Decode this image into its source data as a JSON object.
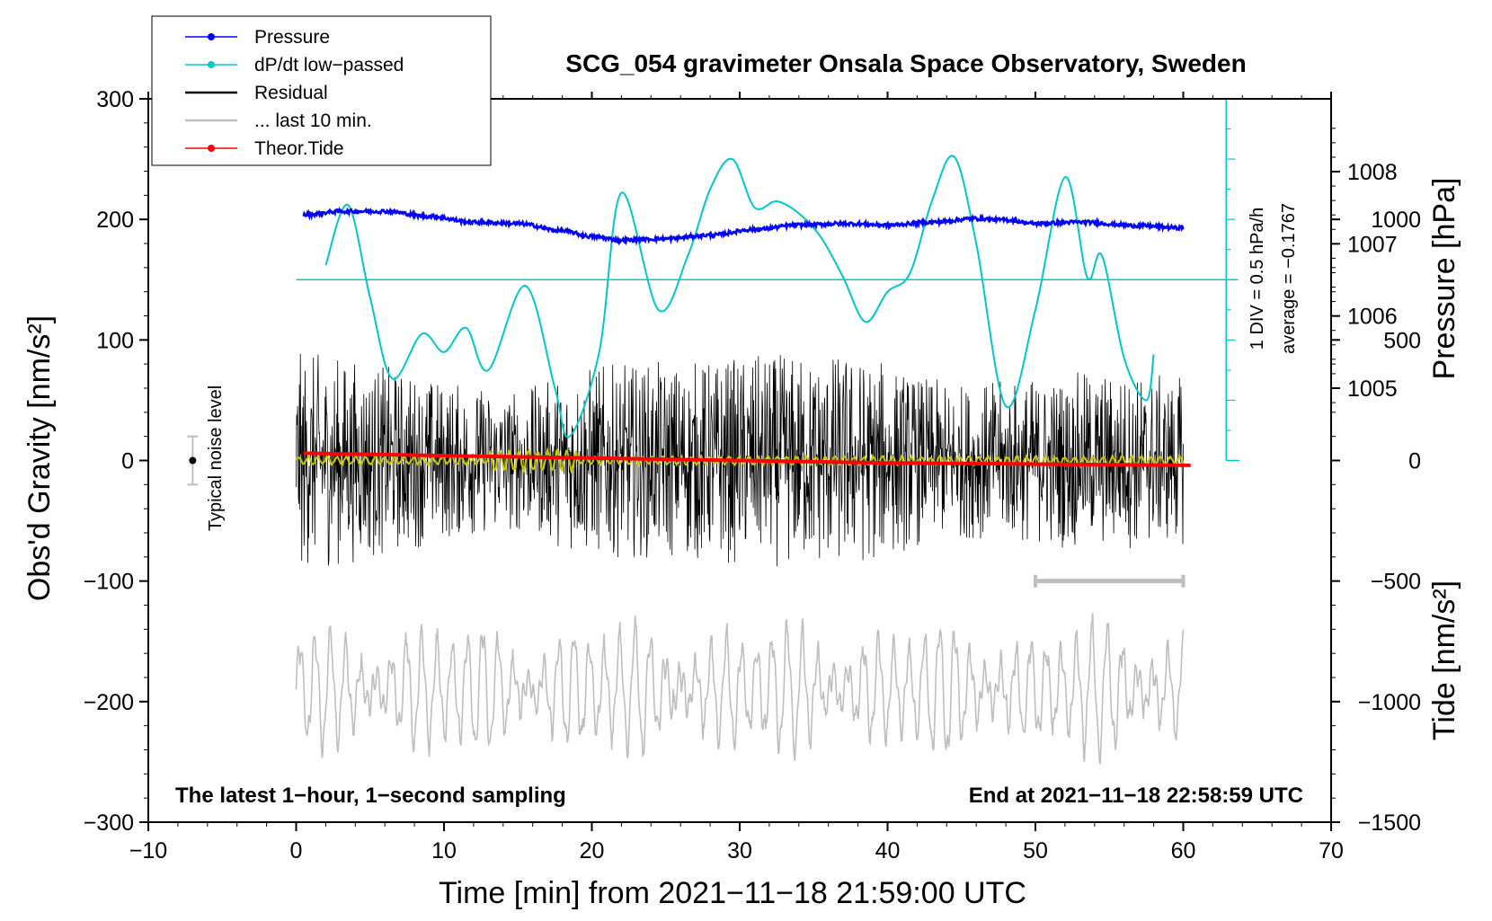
{
  "chart_data": {
    "type": "line",
    "title": "SCG_054 gravimeter Onsala Space Observatory, Sweden",
    "xlabel": "Time [min] from 2021−11−18 21:59:00 UTC",
    "ylabel_left": "Obs'd Gravity [nm/s²]",
    "ylabel_right_pressure": "Pressure [hPa]",
    "ylabel_right_tide": "Tide [nm/s²]",
    "xlim": [
      -10,
      70
    ],
    "ylim_gravity": [
      -300,
      300
    ],
    "ylim_tide": [
      -1500,
      1500
    ],
    "x_ticks": [
      "−10",
      "0",
      "10",
      "20",
      "30",
      "40",
      "50",
      "60",
      "70"
    ],
    "x_tick_values": [
      -10,
      0,
      10,
      20,
      30,
      40,
      50,
      60,
      70
    ],
    "gravity_ticks": [
      "300",
      "200",
      "100",
      "0",
      "−100",
      "−200",
      "−300"
    ],
    "gravity_tick_values": [
      300,
      200,
      100,
      0,
      -100,
      -200,
      -300
    ],
    "pressure_ticks": [
      "1008",
      "1007",
      "1006",
      "1005"
    ],
    "pressure_tick_values": [
      1008,
      1007,
      1006,
      1005
    ],
    "tide_ticks": [
      "1000",
      "500",
      "0",
      "−500",
      "−1000",
      "−1500"
    ],
    "tide_tick_values": [
      1000,
      500,
      0,
      -500,
      -1000,
      -1500
    ],
    "legend": [
      {
        "label": "Pressure",
        "color": "#0000ff",
        "marker": true
      },
      {
        "label": "dP/dt low−passed",
        "color": "#00c8c8",
        "marker": true
      },
      {
        "label": "Residual",
        "color": "#000000",
        "marker": false
      },
      {
        "label": "... last 10 min.",
        "color": "#bebebe",
        "marker": false
      },
      {
        "label": "Theor.Tide",
        "color": "#ff0000",
        "marker": true
      }
    ],
    "pressure_scale_note": "1 DIV = 0.5 hPa/h",
    "pressure_average_note": "average = −0.1767",
    "noise_label": "Typical noise level",
    "typical_noise_level": 20,
    "last10_bar_range": [
      50,
      60
    ],
    "footer_left": "The latest 1−hour, 1−second sampling",
    "footer_right": "End at 2021−11−18 22:58:59 UTC",
    "series": [
      {
        "name": "Pressure",
        "units": "hPa",
        "color": "#0000ff",
        "x": [
          0.5,
          3,
          6,
          9,
          12,
          15,
          18,
          20,
          22,
          25,
          28,
          31,
          34,
          37,
          40,
          43,
          46,
          48,
          50,
          53,
          57,
          60
        ],
        "values": [
          1007.4,
          1007.45,
          1007.45,
          1007.38,
          1007.3,
          1007.28,
          1007.18,
          1007.1,
          1007.05,
          1007.07,
          1007.12,
          1007.2,
          1007.26,
          1007.28,
          1007.26,
          1007.3,
          1007.35,
          1007.33,
          1007.28,
          1007.3,
          1007.25,
          1007.22
        ]
      },
      {
        "name": "dP/dt low-passed",
        "units": "gravity-plot units (1 DIV = 0.5 hPa/h)",
        "color": "#00c8c8",
        "x": [
          2,
          3.5,
          5,
          6.5,
          8.5,
          10,
          11.5,
          13,
          15.5,
          17.5,
          18.5,
          20.5,
          22,
          24.5,
          26.5,
          28,
          29.5,
          31,
          32.5,
          34,
          35.5,
          37,
          38.5,
          40,
          41.5,
          43,
          44.5,
          46,
          48,
          50,
          52,
          53.5,
          54.5,
          56,
          57.5,
          58
        ],
        "values": [
          162,
          212,
          135,
          68,
          105,
          90,
          110,
          75,
          145,
          60,
          20,
          90,
          222,
          125,
          170,
          225,
          250,
          210,
          215,
          205,
          185,
          152,
          115,
          140,
          155,
          215,
          252,
          180,
          45,
          125,
          235,
          152,
          170,
          85,
          50,
          88
        ]
      },
      {
        "name": "Residual",
        "units": "nm/s²",
        "color": "#000000",
        "x": [
          0,
          60
        ],
        "envelope": [
          {
            "x": 0,
            "amplitude": 90
          },
          {
            "x": 15,
            "amplitude": 60
          },
          {
            "x": 20,
            "amplitude": 80
          },
          {
            "x": 36.5,
            "amplitude": 90
          },
          {
            "x": 45,
            "amplitude": 65
          },
          {
            "x": 55,
            "amplitude": 75
          },
          {
            "x": 60,
            "amplitude": 70
          }
        ]
      },
      {
        "name": "... last 10 min.",
        "units": "nm/s² (offset)",
        "color": "#bebebe",
        "x": [
          0,
          60
        ],
        "center": -190,
        "amplitude": 50
      },
      {
        "name": "Theor.Tide",
        "units": "nm/s² (tide axis)",
        "color": "#ff0000",
        "x": [
          0.5,
          10,
          20,
          30,
          40,
          50,
          60.5
        ],
        "values": [
          30,
          20,
          10,
          0,
          -10,
          -15,
          -20
        ]
      },
      {
        "name": "Residual low-passed",
        "units": "nm/s²",
        "color": "#c8c800",
        "x": [
          0,
          60
        ],
        "values": [
          0,
          0
        ]
      }
    ]
  }
}
